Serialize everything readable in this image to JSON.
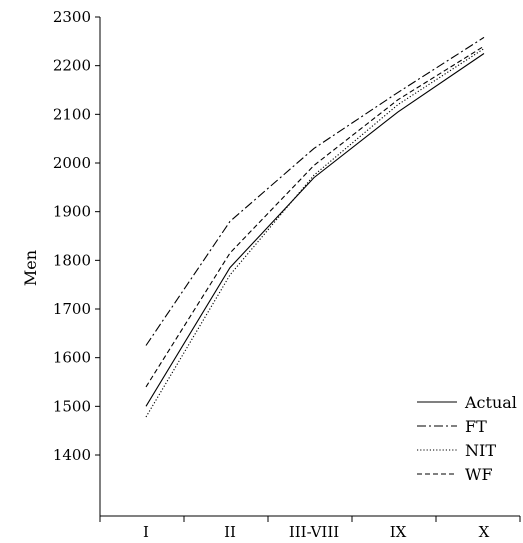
{
  "chart_data": {
    "type": "line",
    "title": "",
    "xlabel": "",
    "ylabel": "Men",
    "categories": [
      "I",
      "II",
      "III-VIII",
      "IX",
      "X"
    ],
    "ylim": [
      1400,
      2300
    ],
    "yticks": [
      1400,
      1500,
      1600,
      1700,
      1800,
      1900,
      2000,
      2100,
      2200,
      2300
    ],
    "grid": false,
    "legend_position": "bottom-right",
    "series": [
      {
        "name": "Actual",
        "style": "solid",
        "color": "#000000",
        "values": [
          1500,
          1785,
          1970,
          2105,
          2225
        ]
      },
      {
        "name": "FT",
        "style": "dashdot",
        "color": "#000000",
        "values": [
          1625,
          1880,
          2030,
          2145,
          2258
        ]
      },
      {
        "name": "NIT",
        "style": "dotted",
        "color": "#000000",
        "values": [
          1478,
          1770,
          1975,
          2120,
          2235
        ]
      },
      {
        "name": "WF",
        "style": "dashed",
        "color": "#000000",
        "values": [
          1540,
          1815,
          1995,
          2130,
          2240
        ]
      }
    ]
  }
}
